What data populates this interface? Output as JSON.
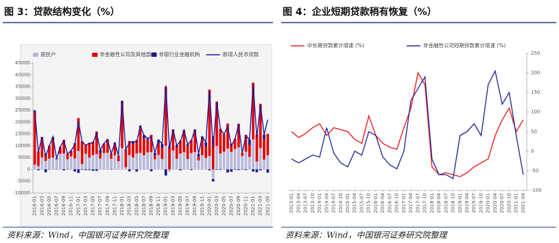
{
  "chart_data": [
    {
      "type": "bar",
      "title": "图 3：贷款结构变化（%）",
      "source": "资料来源：Wind，中国银河证券研究院整理",
      "y_axis_side": "left",
      "categories": [
        "2016-01",
        null,
        "2016-03",
        null,
        "2016-05",
        null,
        "2016-07",
        null,
        "2016-09",
        null,
        "2016-11",
        null,
        "2017-01",
        null,
        "2017-03",
        null,
        "2017-05",
        null,
        "2017-07",
        null,
        "2017-09",
        null,
        "2017-11",
        null,
        "2018-01",
        null,
        "2018-03",
        null,
        "2018-05",
        null,
        "2018-07",
        null,
        "2018-09",
        null,
        "2018-11",
        null,
        "2019-01",
        null,
        "2019-03",
        null,
        "2019-05",
        null,
        "2019-07",
        null,
        "2019-09",
        null,
        "2019-11",
        null,
        "2020-01",
        null,
        "2020-03",
        null,
        "2020-05",
        null,
        "2020-07",
        null,
        "2020-09",
        null,
        "2020-11",
        null,
        "2021-01",
        null,
        "2021-03",
        null,
        "2021-05"
      ],
      "ylim": [
        -10000,
        45000
      ],
      "yticks": [
        -10000,
        -5000,
        0,
        5000,
        10000,
        15000,
        20000,
        25000,
        30000,
        35000,
        40000,
        45000
      ],
      "series": [
        {
          "name": "居民户",
          "type": "bar",
          "color": "#b8b8dc",
          "values": [
            2000,
            1400,
            5000,
            3600,
            4600,
            5000,
            4300,
            6600,
            6700,
            4300,
            5500,
            4600,
            7800,
            2300,
            6600,
            5000,
            6000,
            6500,
            4600,
            6900,
            7000,
            4500,
            6000,
            3500,
            9000,
            900,
            6000,
            5000,
            6700,
            7000,
            6000,
            7200,
            7300,
            4300,
            6100,
            4400,
            10000,
            -1000,
            8000,
            4500,
            6700,
            7300,
            4400,
            6900,
            7300,
            3800,
            6000,
            4800,
            5700,
            -4100,
            9900,
            6700,
            7500,
            8800,
            7400,
            8600,
            9300,
            5700,
            7500,
            5300,
            12700,
            3300,
            9000,
            4100,
            6000
          ]
        },
        {
          "name": "非金融性公司及其他部门",
          "type": "bar",
          "color": "#e60000",
          "values": [
            22500,
            6200,
            8600,
            3200,
            5400,
            8300,
            -100,
            2800,
            5800,
            2300,
            1700,
            6500,
            13900,
            9600,
            3900,
            6300,
            5700,
            9500,
            2300,
            3900,
            5300,
            2200,
            5000,
            2000,
            18900,
            7200,
            6000,
            5800,
            5700,
            11000,
            7200,
            5300,
            7300,
            1700,
            5100,
            4700,
            24900,
            9600,
            8700,
            4800,
            5500,
            9000,
            5500,
            5500,
            9400,
            1600,
            7300,
            4900,
            28000,
            14000,
            18800,
            10500,
            7100,
            10600,
            3500,
            4400,
            10000,
            1300,
            7100,
            5000,
            24000,
            11500,
            18700,
            8500,
            9000
          ]
        },
        {
          "name": "非银行业金融机构",
          "type": "bar",
          "color": "#1a1a8c",
          "values": [
            400,
            -400,
            100,
            -1200,
            -100,
            400,
            400,
            100,
            -400,
            -100,
            600,
            -900,
            -1500,
            -200,
            -300,
            -300,
            -600,
            -600,
            1300,
            100,
            400,
            -100,
            300,
            300,
            1100,
            300,
            -800,
            1000,
            -900,
            400,
            1300,
            500,
            -800,
            1000,
            1300,
            1700,
            -2600,
            300,
            200,
            900,
            -400,
            300,
            700,
            -300,
            200,
            1200,
            600,
            1700,
            -400,
            -1000,
            -200,
            -200,
            200,
            -1300,
            -1000,
            -200,
            -300,
            -100,
            -300,
            2300,
            -900,
            -1200,
            -400,
            2100,
            -1400
          ]
        },
        {
          "name": "新增人民币贷款",
          "type": "line",
          "color": "#1a1a9c",
          "values": [
            25100,
            7266,
            13700,
            5556,
            9855,
            13800,
            4636,
            9487,
            12200,
            6513,
            7946,
            10400,
            20300,
            11700,
            10200,
            11000,
            11100,
            15400,
            8255,
            10900,
            12700,
            6632,
            11200,
            5844,
            29000,
            8393,
            11200,
            11800,
            11500,
            18400,
            14500,
            13100,
            13800,
            6970,
            12500,
            10800,
            35500,
            8858,
            16900,
            10200,
            11800,
            16600,
            10600,
            12100,
            16900,
            6613,
            13900,
            11400,
            33400,
            9057,
            28500,
            17000,
            14800,
            18100,
            9927,
            12800,
            19000,
            6898,
            14300,
            12600,
            35800,
            13600,
            27300,
            14700,
            21000
          ]
        }
      ]
    },
    {
      "type": "line",
      "title": "图 4：企业短期贷款稍有恢复（%）",
      "source": "资料来源：Wind，中国银河证券研究院整理",
      "y_axis_side": "right",
      "categories": [
        "2013-01",
        "2013-04",
        "2013-07",
        "2013-10",
        "2014-01",
        "2014-04",
        "2014-07",
        "2014-10",
        "2015-01",
        "2015-04",
        "2015-07",
        "2015-10",
        "2016-01",
        "2016-04",
        "2016-07",
        "2016-10",
        "2017-01",
        "2017-04",
        "2017-07",
        "2017-10",
        "2018-01",
        "2018-04",
        "2018-07",
        "2018-10",
        "2019-01",
        "2019-04",
        "2019-07",
        "2019-10",
        "2020-01",
        "2020-04",
        "2020-07",
        "2020-10",
        "2021-01",
        "2021-04"
      ],
      "ylim": [
        -100,
        250
      ],
      "yticks": [
        -100,
        -50,
        0,
        50,
        100,
        150,
        200,
        250
      ],
      "series": [
        {
          "name": "中长期贷款累计增速 (%)",
          "color": "#ee1c1c",
          "values": [
            50,
            35,
            45,
            60,
            70,
            40,
            60,
            55,
            50,
            30,
            20,
            90,
            40,
            20,
            10,
            5,
            60,
            110,
            200,
            170,
            -40,
            -60,
            -55,
            -60,
            -65,
            -55,
            -40,
            -30,
            -20,
            40,
            80,
            110,
            50,
            80
          ]
        },
        {
          "name": "非金融性公司短期贷款累计增速 (%)",
          "color": "#2b2b99",
          "values": [
            -20,
            -30,
            -20,
            -10,
            -15,
            60,
            -5,
            -30,
            -40,
            0,
            -10,
            50,
            40,
            -15,
            -35,
            -45,
            0,
            130,
            160,
            190,
            -20,
            -60,
            -60,
            -70,
            40,
            50,
            70,
            40,
            170,
            205,
            120,
            150,
            40,
            -60
          ]
        }
      ]
    }
  ]
}
